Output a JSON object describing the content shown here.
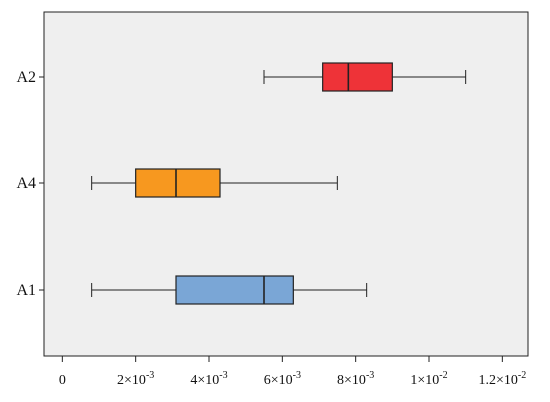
{
  "chart_data": {
    "type": "boxplot",
    "orientation": "horizontal",
    "title": "",
    "xlabel": "",
    "ylabel": "",
    "xlim": [
      -0.0005,
      0.0127
    ],
    "x_ticks": [
      {
        "value": 0,
        "label": "0",
        "sup": ""
      },
      {
        "value": 0.002,
        "label": "2×10",
        "sup": "-3"
      },
      {
        "value": 0.004,
        "label": "4×10",
        "sup": "-3"
      },
      {
        "value": 0.006,
        "label": "6×10",
        "sup": "-3"
      },
      {
        "value": 0.008,
        "label": "8×10",
        "sup": "-3"
      },
      {
        "value": 0.01,
        "label": "1×10",
        "sup": "-2"
      },
      {
        "value": 0.012,
        "label": "1.2×10",
        "sup": "-2"
      }
    ],
    "categories_top_to_bottom": [
      "A2",
      "A4",
      "A1"
    ],
    "series": [
      {
        "category": "A2",
        "min": 0.0055,
        "q1": 0.0071,
        "median": 0.0078,
        "q3": 0.009,
        "max": 0.011,
        "color": "#ee3338"
      },
      {
        "category": "A4",
        "min": 0.0008,
        "q1": 0.002,
        "median": 0.0031,
        "q3": 0.0043,
        "max": 0.0075,
        "color": "#f7981f"
      },
      {
        "category": "A1",
        "min": 0.0008,
        "q1": 0.0031,
        "median": 0.0055,
        "q3": 0.0063,
        "max": 0.0083,
        "color": "#7aa6d6"
      }
    ],
    "grid": false,
    "plot_background": "#efefef"
  }
}
